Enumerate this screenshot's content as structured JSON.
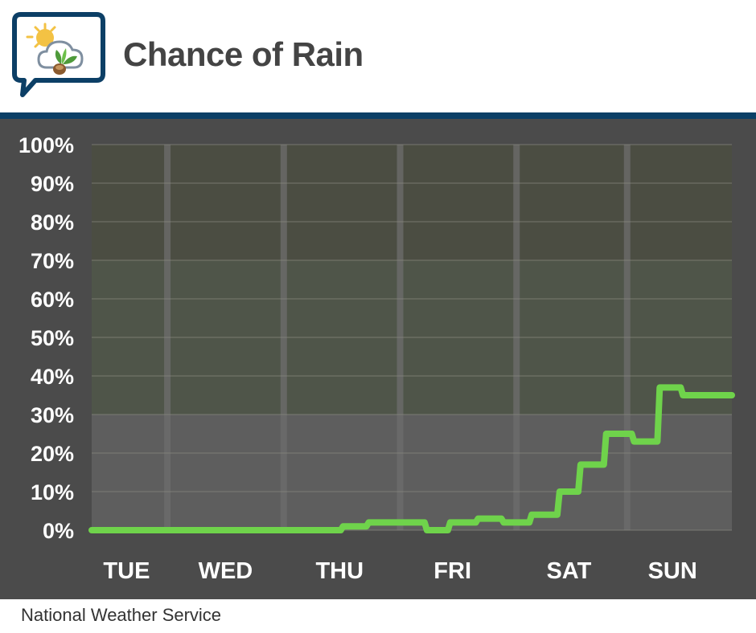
{
  "header": {
    "title": "Chance of Rain"
  },
  "footer": {
    "source": "National Weather Service"
  },
  "colors": {
    "accent_rule": "#0c3f66",
    "panel": "#4b4b4b",
    "line": "#6fd34b",
    "band_top": "#4b4d42",
    "band_mid": "#4f5549",
    "band_low": "#5e5e5e"
  },
  "chart_data": {
    "type": "line",
    "title": "Chance of Rain",
    "xlabel": "",
    "ylabel": "",
    "ylim": [
      0,
      100
    ],
    "y_ticks": [
      "0%",
      "10%",
      "20%",
      "30%",
      "40%",
      "50%",
      "60%",
      "70%",
      "80%",
      "90%",
      "100%"
    ],
    "x_range": [
      0,
      5.5
    ],
    "day_labels": [
      {
        "label": "TUE",
        "x": 0.3
      },
      {
        "label": "WED",
        "x": 1.15
      },
      {
        "label": "THU",
        "x": 2.13
      },
      {
        "label": "FRI",
        "x": 3.1
      },
      {
        "label": "SAT",
        "x": 4.1
      },
      {
        "label": "SUN",
        "x": 4.99
      }
    ],
    "day_dividers": [
      0.65,
      1.65,
      2.65,
      3.65,
      4.6
    ],
    "grid": true,
    "legend": "none",
    "series": [
      {
        "x": [
          0,
          2.14,
          2.16,
          2.36,
          2.38,
          2.86,
          2.88,
          3.06,
          3.08,
          3.3,
          3.32,
          3.52,
          3.54,
          3.76,
          3.78,
          4.0,
          4.02,
          4.18,
          4.2,
          4.4,
          4.42,
          4.64,
          4.66,
          4.86,
          4.88,
          5.06,
          5.08,
          5.28,
          5.3,
          5.5
        ],
        "y": [
          0,
          0,
          1,
          1,
          2,
          2,
          0,
          0,
          2,
          2,
          3,
          3,
          2,
          2,
          4,
          4,
          10,
          10,
          17,
          17,
          25,
          25,
          23,
          23,
          37,
          37,
          35,
          35,
          35,
          35
        ]
      }
    ]
  }
}
